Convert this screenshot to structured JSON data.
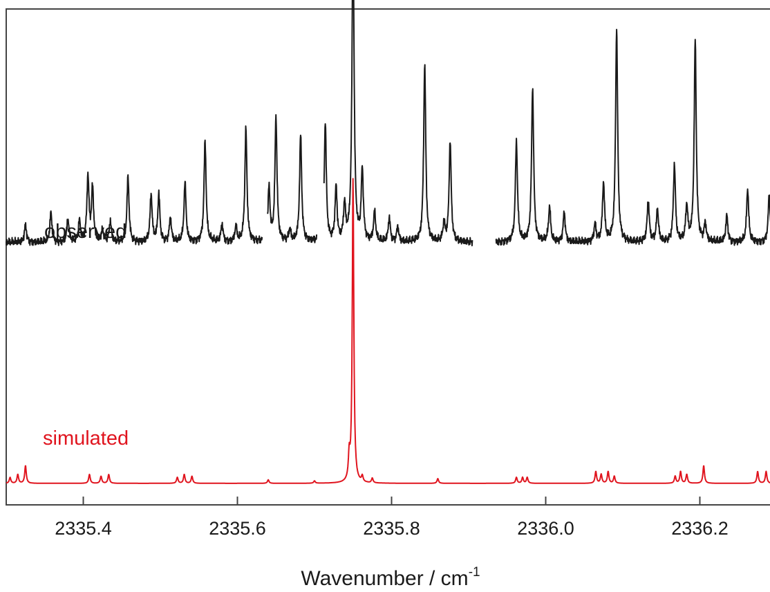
{
  "chart_data": {
    "type": "line",
    "title": "",
    "xlabel": "Wavenumber / cm",
    "xlabel_superscript": "-1",
    "ylabel": "",
    "xlim": [
      2335.3,
      2336.3
    ],
    "ylim": [
      0,
      1
    ],
    "x_ticks": [
      2335.4,
      2335.6,
      2335.8,
      2336.0,
      2336.2
    ],
    "x_tick_labels": [
      "2335.4",
      "2335.6",
      "2335.8",
      "2336.0",
      "2336.2"
    ],
    "grid": false,
    "legend": "none",
    "colors": {
      "observed": "#1a1a1a",
      "simulated": "#e0141e"
    },
    "series": [
      {
        "name": "observed",
        "baseline": 0.44,
        "gaps": [
          [
            2335.632,
            2335.639
          ],
          [
            2335.703,
            2335.712
          ],
          [
            2335.905,
            2335.935
          ]
        ],
        "peaks": [
          [
            2335.325,
            0.03
          ],
          [
            2335.358,
            0.05
          ],
          [
            2335.38,
            0.04
          ],
          [
            2335.395,
            0.035
          ],
          [
            2335.406,
            0.11
          ],
          [
            2335.412,
            0.09
          ],
          [
            2335.425,
            0.02
          ],
          [
            2335.435,
            0.035
          ],
          [
            2335.458,
            0.11
          ],
          [
            2335.488,
            0.08
          ],
          [
            2335.498,
            0.08
          ],
          [
            2335.513,
            0.04
          ],
          [
            2335.532,
            0.1
          ],
          [
            2335.558,
            0.17
          ],
          [
            2335.58,
            0.03
          ],
          [
            2335.598,
            0.025
          ],
          [
            2335.611,
            0.19
          ],
          [
            2335.641,
            0.09
          ],
          [
            2335.65,
            0.21
          ],
          [
            2335.668,
            0.02
          ],
          [
            2335.682,
            0.18
          ],
          [
            2335.714,
            0.2
          ],
          [
            2335.728,
            0.09
          ],
          [
            2335.739,
            0.06
          ],
          [
            2335.75,
            0.53
          ],
          [
            2335.762,
            0.12
          ],
          [
            2335.778,
            0.05
          ],
          [
            2335.797,
            0.04
          ],
          [
            2335.808,
            0.025
          ],
          [
            2335.843,
            0.3
          ],
          [
            2335.868,
            0.03
          ],
          [
            2335.876,
            0.17
          ],
          [
            2335.962,
            0.17
          ],
          [
            2335.983,
            0.26
          ],
          [
            2336.005,
            0.06
          ],
          [
            2336.024,
            0.05
          ],
          [
            2336.064,
            0.03
          ],
          [
            2336.075,
            0.1
          ],
          [
            2336.092,
            0.36
          ],
          [
            2336.133,
            0.07
          ],
          [
            2336.145,
            0.055
          ],
          [
            2336.167,
            0.13
          ],
          [
            2336.183,
            0.06
          ],
          [
            2336.194,
            0.34
          ],
          [
            2336.207,
            0.03
          ],
          [
            2336.235,
            0.045
          ],
          [
            2336.262,
            0.09
          ],
          [
            2336.29,
            0.08
          ]
        ]
      },
      {
        "name": "simulated",
        "baseline": 0.035,
        "peaks": [
          [
            2335.305,
            0.01
          ],
          [
            2335.315,
            0.015
          ],
          [
            2335.325,
            0.03
          ],
          [
            2335.408,
            0.015
          ],
          [
            2335.423,
            0.012
          ],
          [
            2335.433,
            0.015
          ],
          [
            2335.522,
            0.01
          ],
          [
            2335.531,
            0.015
          ],
          [
            2335.541,
            0.012
          ],
          [
            2335.64,
            0.006
          ],
          [
            2335.7,
            0.004
          ],
          [
            2335.745,
            0.04
          ],
          [
            2335.75,
            0.51
          ],
          [
            2335.762,
            0.01
          ],
          [
            2335.775,
            0.008
          ],
          [
            2335.86,
            0.008
          ],
          [
            2335.962,
            0.01
          ],
          [
            2335.97,
            0.01
          ],
          [
            2335.976,
            0.01
          ],
          [
            2336.065,
            0.02
          ],
          [
            2336.072,
            0.015
          ],
          [
            2336.081,
            0.02
          ],
          [
            2336.089,
            0.012
          ],
          [
            2336.168,
            0.012
          ],
          [
            2336.175,
            0.02
          ],
          [
            2336.183,
            0.015
          ],
          [
            2336.205,
            0.03
          ],
          [
            2336.275,
            0.02
          ],
          [
            2336.286,
            0.02
          ]
        ]
      }
    ]
  }
}
